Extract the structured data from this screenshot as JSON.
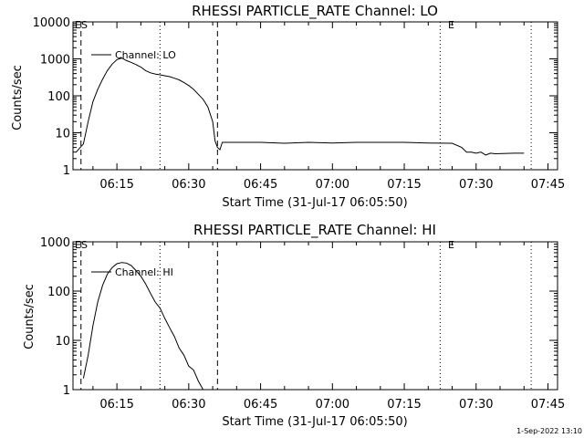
{
  "footer": {
    "date": "1-Sep-2022 13:10"
  },
  "colors": {
    "line": "#000000",
    "background": "#ffffff"
  },
  "chart_data": [
    {
      "type": "line",
      "title": "RHESSI PARTICLE_RATE Channel: LO",
      "xlabel": "Start Time (31-Jul-17 06:05:50)",
      "ylabel": "Counts/sec",
      "yscale": "log",
      "ylim": [
        1,
        10000
      ],
      "xlim": [
        "06:05:50",
        "07:47:00"
      ],
      "ytick_labels": [
        "1",
        "10",
        "100",
        "1000",
        "10000"
      ],
      "ytick_values": [
        1,
        10,
        100,
        1000,
        10000
      ],
      "xtick_labels": [
        "06:15",
        "06:30",
        "06:45",
        "07:00",
        "07:15",
        "07:30",
        "07:45"
      ],
      "xtick_values": [
        "06:15",
        "06:30",
        "06:45",
        "07:00",
        "07:15",
        "07:30",
        "07:45"
      ],
      "legend": {
        "placement": "top-left"
      },
      "markers": {
        "dashed": [
          "06:07:30",
          "06:36:00"
        ],
        "dotted": [
          "06:24:00",
          "07:22:30",
          "07:41:30"
        ]
      },
      "annotations": [
        {
          "text": "ES",
          "x": "06:07:30",
          "y": 10000
        },
        {
          "text": "E",
          "x": "07:22:30",
          "y": 10000
        }
      ],
      "series": [
        {
          "name": "Channel: LO",
          "x": [
            "06:06:30",
            "06:08:00",
            "06:09:00",
            "06:10:00",
            "06:11:00",
            "06:12:00",
            "06:13:00",
            "06:14:00",
            "06:15:00",
            "06:16:00",
            "06:17:00",
            "06:18:00",
            "06:19:00",
            "06:20:00",
            "06:21:00",
            "06:22:00",
            "06:23:00",
            "06:24:00",
            "06:25:00",
            "06:26:00",
            "06:27:00",
            "06:28:00",
            "06:29:00",
            "06:30:00",
            "06:31:00",
            "06:32:00",
            "06:33:00",
            "06:34:00",
            "06:35:00",
            "06:35:30",
            "06:36:00",
            "06:36:30",
            "06:37:00",
            "06:40:00",
            "06:45:00",
            "06:50:00",
            "06:55:00",
            "07:00:00",
            "07:05:00",
            "07:10:00",
            "07:15:00",
            "07:20:00",
            "07:25:00",
            "07:27:00",
            "07:28:00",
            "07:29:00",
            "07:30:00",
            "07:31:00",
            "07:32:00",
            "07:33:00",
            "07:34:00",
            "07:38:00",
            "07:40:00"
          ],
          "values": [
            3,
            5,
            20,
            70,
            150,
            280,
            480,
            720,
            950,
            1050,
            900,
            800,
            700,
            600,
            480,
            420,
            390,
            370,
            350,
            330,
            300,
            270,
            230,
            190,
            150,
            110,
            80,
            50,
            20,
            6,
            4,
            3.5,
            5.5,
            5.5,
            5.5,
            5.2,
            5.5,
            5.3,
            5.5,
            5.5,
            5.5,
            5.3,
            5.2,
            4,
            3,
            3,
            2.8,
            3,
            2.5,
            2.8,
            2.7,
            2.8,
            2.8
          ]
        }
      ]
    },
    {
      "type": "line",
      "title": "RHESSI PARTICLE_RATE Channel: HI",
      "xlabel": "Start Time (31-Jul-17 06:05:50)",
      "ylabel": "Counts/sec",
      "yscale": "log",
      "ylim": [
        1,
        1000
      ],
      "xlim": [
        "06:05:50",
        "07:47:00"
      ],
      "ytick_labels": [
        "1",
        "10",
        "100",
        "1000"
      ],
      "ytick_values": [
        1,
        10,
        100,
        1000
      ],
      "xtick_labels": [
        "06:15",
        "06:30",
        "06:45",
        "07:00",
        "07:15",
        "07:30",
        "07:45"
      ],
      "xtick_values": [
        "06:15",
        "06:30",
        "06:45",
        "07:00",
        "07:15",
        "07:30",
        "07:45"
      ],
      "legend": {
        "placement": "top-left"
      },
      "markers": {
        "dashed": [
          "06:07:30",
          "06:36:00"
        ],
        "dotted": [
          "06:24:00",
          "07:22:30",
          "07:41:30"
        ]
      },
      "annotations": [
        {
          "text": "ES",
          "x": "06:07:30",
          "y": 1000
        },
        {
          "text": "E",
          "x": "07:22:30",
          "y": 1000
        }
      ],
      "series": [
        {
          "name": "Channel: HI",
          "x": [
            "06:08:00",
            "06:09:00",
            "06:10:00",
            "06:11:00",
            "06:12:00",
            "06:13:00",
            "06:14:00",
            "06:15:00",
            "06:16:00",
            "06:17:00",
            "06:18:00",
            "06:19:00",
            "06:20:00",
            "06:21:00",
            "06:22:00",
            "06:23:00",
            "06:24:00",
            "06:25:00",
            "06:26:00",
            "06:27:00",
            "06:28:00",
            "06:29:00",
            "06:30:00",
            "06:31:00",
            "06:32:00",
            "06:33:00"
          ],
          "values": [
            1.7,
            5,
            20,
            60,
            130,
            220,
            300,
            360,
            380,
            370,
            330,
            260,
            200,
            140,
            90,
            60,
            45,
            28,
            18,
            12,
            7,
            5,
            3,
            2.5,
            1.5,
            1.0
          ]
        }
      ]
    }
  ]
}
